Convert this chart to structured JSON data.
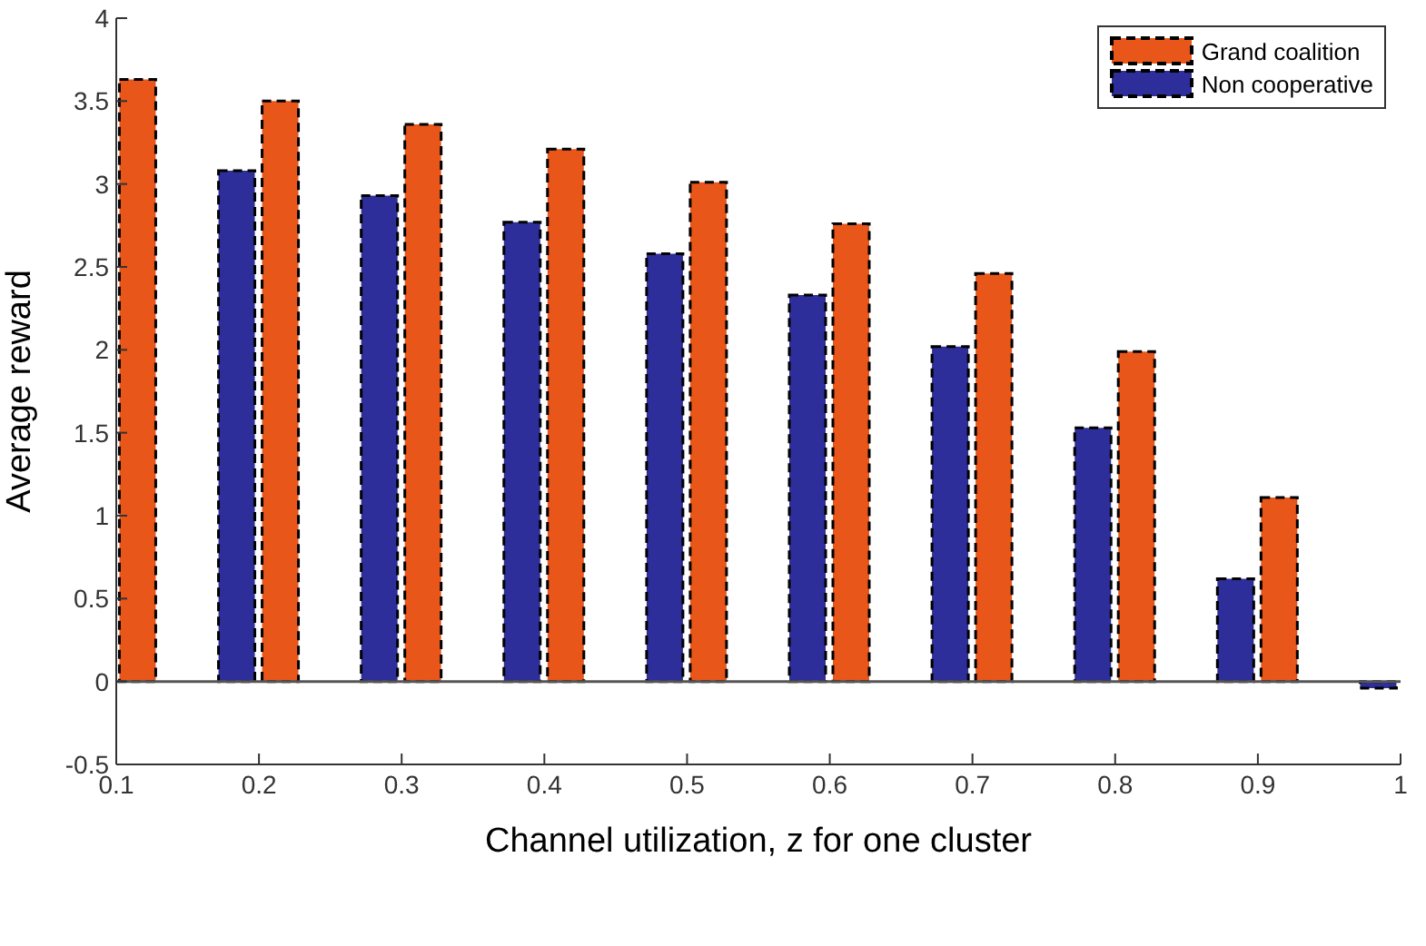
{
  "chart_data": {
    "type": "bar",
    "xlabel": "Channel utilization, z for one cluster",
    "ylabel": "Average reward",
    "x": [
      0.1,
      0.2,
      0.3,
      0.4,
      0.5,
      0.6,
      0.7,
      0.8,
      0.9,
      1
    ],
    "series": [
      {
        "name": "Non cooperative",
        "color": "#2e2e9a",
        "values": [
          null,
          3.08,
          2.93,
          2.77,
          2.58,
          2.33,
          2.02,
          1.53,
          0.62,
          -0.04
        ]
      },
      {
        "name": "Grand coalition",
        "color": "#e8561a",
        "values": [
          3.63,
          3.5,
          3.36,
          3.21,
          3.01,
          2.76,
          2.46,
          1.99,
          1.11,
          null
        ]
      }
    ],
    "xlim": [
      0.1,
      1
    ],
    "xticks": [
      0.1,
      0.2,
      0.3,
      0.4,
      0.5,
      0.6,
      0.7,
      0.8,
      0.9,
      1
    ],
    "ylim": [
      -0.5,
      4
    ],
    "yticks": [
      -0.5,
      0,
      0.5,
      1,
      1.5,
      2,
      2.5,
      3,
      3.5,
      4
    ],
    "ref_lines": [
      {
        "axis": "y",
        "value": 0,
        "color": "#555555"
      }
    ],
    "grid": false,
    "legend": "top right",
    "line_style": "dashed"
  }
}
